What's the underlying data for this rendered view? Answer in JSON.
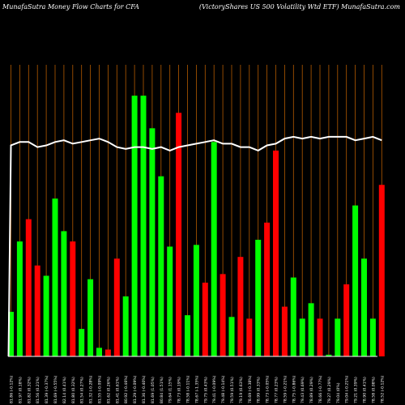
{
  "header": {
    "left": "MunafaSutra  Money Flow  Charts for CFA",
    "right": "(VictoryShares US 500  Volatility Wtd ETF) MunafaSutra.com"
  },
  "colors": {
    "background": "#000000",
    "up": "#00ff00",
    "down": "#ff0000",
    "gridline": "#b35a00",
    "baseline": "#ffffff",
    "line": "#ffffff"
  },
  "chart_data": {
    "type": "bar",
    "title": "MunafaSutra  Money Flow  Charts for CFA",
    "subtitle": "(VictoryShares US 500  Volatility Wtd ETF) MunafaSutra.com",
    "categories": [
      "81.86 (-0.12%)",
      "81.97 (0.18%)",
      "81.82 (0.32%)",
      "81.56 (0.21%)",
      "81.39 (-0.37%)",
      "81.69 (-0.55%)",
      "82.14 (0.41%)",
      "81.80 (0.32%)",
      "81.54 (0.27%)",
      "81.32 (-0.28%)",
      "81.55 (-0.09%)",
      "81.62 (0.26%)",
      "81.41 (0.61%)",
      "80.92 (-0.46%)",
      "81.29 (-0.09%)",
      "81.36 (-0.40%)",
      "81.69 (1.05%)",
      "80.84 (1.51%)",
      "79.64 (1.15%)",
      "78.73 (0.19%)",
      "78.58 (-0.11%)",
      "78.67 (-1.35%)",
      "79.75 (0.43%)",
      "79.41 (-0.09%)",
      "79.48 (-0.14%)",
      "79.59 (0.51%)",
      "79.19 (0.63%)",
      "78.69 (-0.38%)",
      "78.99 (0.33%)",
      "78.73 (-0.05%)",
      "78.77 (0.23%)",
      "78.59 (-0.21%)",
      "78.75 (-0.86%)",
      "79.43 (0.69%)",
      "78.89 (0.29%)",
      "78.66 (-0.77%)",
      "79.27 (0.29%)",
      "79.04 (0%)",
      "79.04 (-0.21%)",
      "79.21 (0.39%)",
      "78.90 (0.41%)",
      "78.58 (0.08%)",
      "78.52 (-0.12%)"
    ],
    "colors": [
      "green",
      "green",
      "red",
      "red",
      "green",
      "green",
      "green",
      "red",
      "green",
      "green",
      "green",
      "red",
      "red",
      "green",
      "green",
      "green",
      "green",
      "green",
      "green",
      "red",
      "green",
      "green",
      "red",
      "green",
      "red",
      "green",
      "red",
      "red",
      "green",
      "red",
      "red",
      "red",
      "green",
      "green",
      "green",
      "red",
      "green",
      "green",
      "red",
      "green",
      "green",
      "green",
      "red"
    ],
    "values": [
      26,
      67,
      80,
      53,
      47,
      92,
      73,
      67,
      16,
      45,
      5,
      4,
      57,
      35,
      152,
      152,
      133,
      105,
      64,
      142,
      24,
      65,
      43,
      125,
      48,
      23,
      58,
      22,
      68,
      78,
      120,
      29,
      46,
      22,
      31,
      22,
      1,
      22,
      42,
      88,
      57,
      22,
      100
    ],
    "line": [
      123,
      125,
      125,
      122,
      123,
      125,
      126,
      124,
      125,
      126,
      127,
      125,
      122,
      121,
      122,
      122,
      121,
      122,
      120,
      122,
      123,
      124,
      125,
      126,
      124,
      124,
      122,
      122,
      120,
      123,
      124,
      127,
      128,
      127,
      128,
      127,
      128,
      128,
      128,
      126,
      127,
      128,
      126
    ],
    "ylim": [
      0,
      170
    ]
  }
}
